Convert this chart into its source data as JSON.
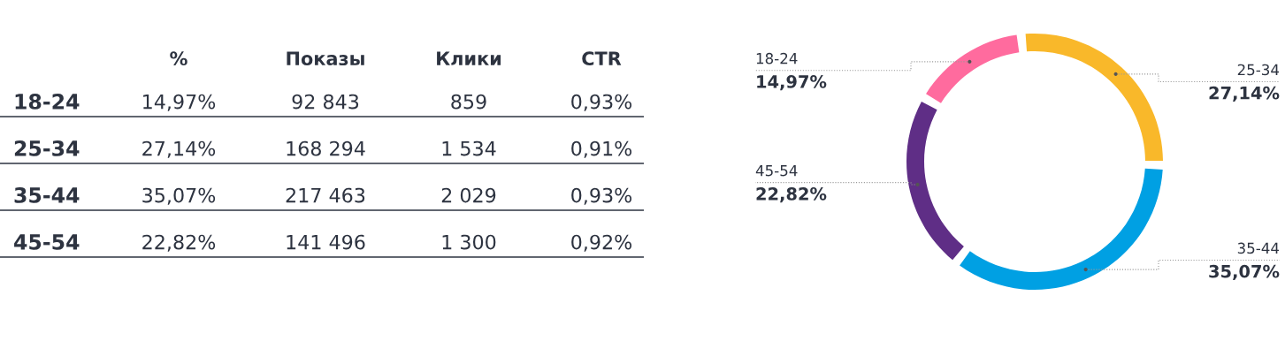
{
  "chart_data": [
    {
      "type": "other",
      "categories": [
        "%",
        "Показы",
        "Клики",
        "CTR"
      ],
      "y_categories": [
        "18-24",
        "25-34",
        "35-44",
        "45-54"
      ],
      "cell_labels": [
        [
          "14,97%",
          "92 843",
          "859",
          "0,93%"
        ],
        [
          "27,14%",
          "168 294",
          "1 534",
          "0,91%"
        ],
        [
          "35,07%",
          "217 463",
          "2 029",
          "0,93%"
        ],
        [
          "22,82%",
          "141 496",
          "1 300",
          "0,92%"
        ]
      ]
    },
    {
      "type": "donut",
      "categories": [
        "18-24",
        "25-34",
        "35-44",
        "45-54"
      ],
      "values": [
        14.97,
        27.14,
        35.07,
        22.82
      ],
      "colors": [
        "#ff6b9e",
        "#f9b82a",
        "#00a0e3",
        "#5f2e86"
      ],
      "value_labels": [
        "14,97%",
        "27,14%",
        "35,07%",
        "22,82%"
      ]
    }
  ]
}
